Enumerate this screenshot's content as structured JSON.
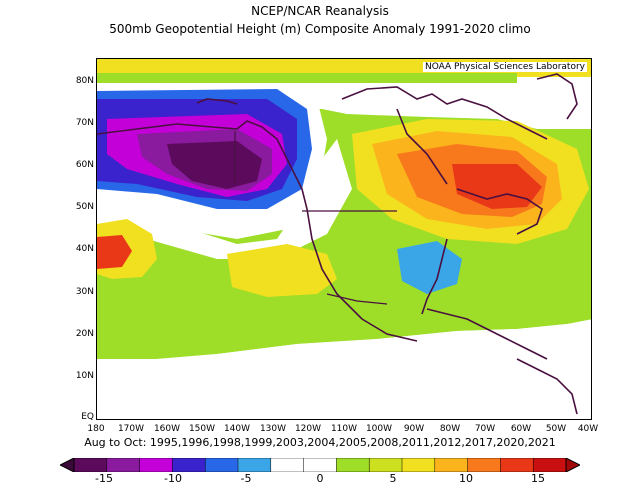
{
  "title_line1": "NCEP/NCAR Reanalysis",
  "title_line2": "500mb Geopotential Height (m) Composite Anomaly 1991-2020 climo",
  "credit": "NOAA Physical Sciences Laboratory",
  "lat_labels": [
    "80N",
    "70N",
    "60N",
    "50N",
    "40N",
    "30N",
    "20N",
    "10N",
    "EQ"
  ],
  "lon_labels": [
    "180",
    "170W",
    "160W",
    "150W",
    "140W",
    "130W",
    "120W",
    "110W",
    "100W",
    "90W",
    "80W",
    "70W",
    "60W",
    "50W",
    "40W"
  ],
  "subtitle": "Aug to Oct: 1995,1996,1998,1999,2003,2004,2005,2008,2011,2012,2017,2020,2021",
  "colorbar": {
    "labels": [
      "-15",
      "-10",
      "-5",
      "0",
      "5",
      "10",
      "15"
    ],
    "colors": [
      "#5c0a5c",
      "#8a1a9e",
      "#c400d8",
      "#3a22cc",
      "#2868e8",
      "#3aa6e8",
      "#ffffff",
      "#ffffff",
      "#9ede28",
      "#cde020",
      "#f0e020",
      "#fcb41c",
      "#f8781c",
      "#e83818",
      "#c81010"
    ]
  }
}
